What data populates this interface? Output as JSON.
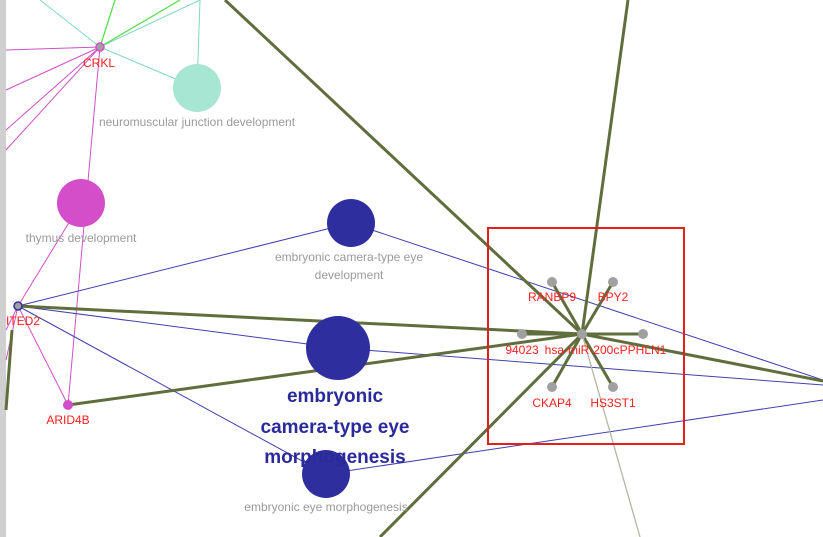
{
  "network": {
    "gene_labels": {
      "crkl": "CRKL",
      "cited2": "ITED2",
      "arid4b": "ARID4B",
      "ranbp9": "RANBP9",
      "bpy2": "BPY2",
      "n94023": "94023",
      "mir": "hsa-miR-200c",
      "pphln1": "PPHLN1",
      "ckap4": "CKAP4",
      "hs3st1": "HS3ST1"
    },
    "term_labels": {
      "neuromuscular": "neuromuscular junction development",
      "thymus": "thymus development",
      "eye_dev_line1": "embryonic camera-type eye",
      "eye_dev_line2": "development",
      "eye_morph_big_line1": "embryonic",
      "eye_morph_big_line2": "camera-type eye",
      "eye_morph_big_line3": "morphogenesis",
      "embryonic_eye_morph": "embryonic eye morphogenesis"
    },
    "colors": {
      "gene_label": "#ff2020",
      "term_label": "#9a9a9a",
      "big_term_label": "#2a2a9a",
      "mirna_edge": "#5f6e3c",
      "blue_edge": "#4040b0",
      "pink_edge": "#d050c8",
      "teal_edge": "#80d8c0",
      "green_edge": "#58e050",
      "selection_box": "#e02020",
      "node_grey": "#a0a0a0",
      "node_navy": "#2e2e9e",
      "node_magenta": "#d34ec8",
      "node_teal": "#a6e6d2"
    }
  }
}
